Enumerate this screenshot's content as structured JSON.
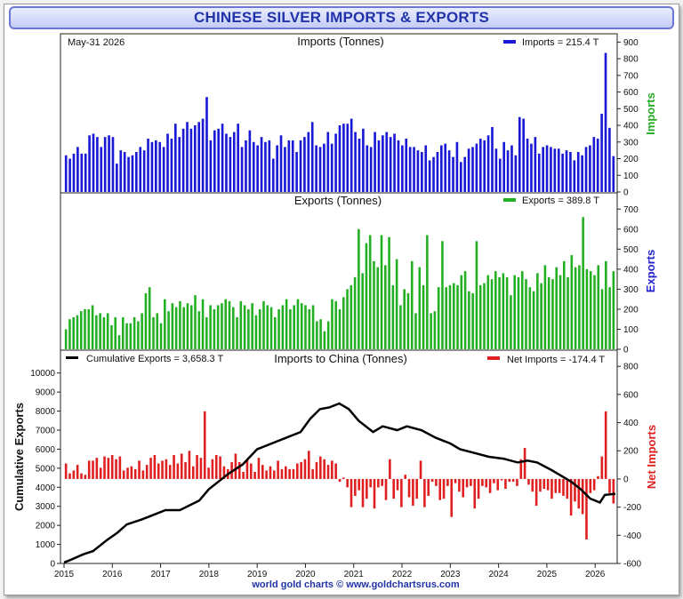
{
  "page_title": "CHINESE SILVER IMPORTS & EXPORTS",
  "footer": "world gold charts © www.goldchartsrus.com",
  "chart_data": [
    {
      "id": "imports",
      "type": "bar",
      "title": "Imports (Tonnes)",
      "date_label": "May-31  2026",
      "legend": "Imports = 215.4 T",
      "ylabel": "Imports",
      "ylim": [
        0,
        950
      ],
      "yticks": [
        0,
        100,
        200,
        300,
        400,
        500,
        600,
        700,
        800,
        900
      ],
      "color": "#1a1ad6",
      "x_start": "2015-01",
      "values": [
        220,
        200,
        230,
        270,
        230,
        230,
        340,
        350,
        330,
        270,
        330,
        340,
        330,
        170,
        250,
        240,
        210,
        220,
        240,
        270,
        250,
        320,
        300,
        310,
        300,
        270,
        350,
        320,
        410,
        330,
        380,
        420,
        380,
        400,
        420,
        440,
        570,
        310,
        370,
        380,
        410,
        350,
        330,
        360,
        410,
        270,
        310,
        370,
        300,
        280,
        330,
        300,
        310,
        200,
        280,
        340,
        270,
        310,
        310,
        240,
        310,
        330,
        360,
        420,
        280,
        270,
        290,
        360,
        290,
        350,
        400,
        410,
        410,
        440,
        360,
        320,
        380,
        280,
        270,
        360,
        310,
        340,
        360,
        330,
        350,
        310,
        280,
        320,
        270,
        270,
        250,
        240,
        280,
        190,
        210,
        240,
        280,
        290,
        250,
        210,
        300,
        180,
        210,
        260,
        270,
        290,
        320,
        310,
        340,
        390,
        260,
        200,
        300,
        250,
        280,
        220,
        450,
        440,
        320,
        290,
        330,
        230,
        270,
        280,
        270,
        260,
        260,
        230,
        250,
        240,
        190,
        240,
        220,
        270,
        280,
        330,
        320,
        470,
        835,
        385,
        215.4
      ]
    },
    {
      "id": "exports",
      "type": "bar",
      "title": "Exports (Tonnes)",
      "legend": "Exports = 389.8 T",
      "ylabel": "Exports",
      "ylim": [
        0,
        750
      ],
      "yticks": [
        0,
        100,
        200,
        300,
        400,
        500,
        600,
        700
      ],
      "color": "#22b022",
      "x_start": "2015-01",
      "values": [
        100,
        150,
        160,
        170,
        190,
        200,
        200,
        220,
        170,
        180,
        160,
        180,
        120,
        160,
        70,
        160,
        130,
        130,
        160,
        140,
        180,
        280,
        310,
        160,
        180,
        130,
        250,
        190,
        230,
        210,
        240,
        210,
        230,
        220,
        270,
        190,
        250,
        160,
        220,
        200,
        220,
        230,
        250,
        240,
        210,
        160,
        240,
        220,
        200,
        230,
        170,
        200,
        240,
        220,
        210,
        160,
        200,
        220,
        250,
        200,
        220,
        250,
        230,
        220,
        200,
        220,
        140,
        150,
        90,
        140,
        250,
        240,
        200,
        260,
        300,
        320,
        360,
        600,
        380,
        530,
        570,
        440,
        410,
        570,
        420,
        560,
        320,
        450,
        220,
        300,
        280,
        440,
        180,
        410,
        320,
        570,
        180,
        190,
        310,
        540,
        310,
        320,
        330,
        320,
        370,
        390,
        290,
        280,
        540,
        320,
        330,
        370,
        350,
        390,
        360,
        380,
        360,
        270,
        370,
        360,
        390,
        350,
        310,
        290,
        380,
        330,
        420,
        360,
        350,
        410,
        370,
        440,
        360,
        470,
        410,
        420,
        660,
        400,
        390,
        370,
        420,
        300,
        440,
        310,
        389.8
      ]
    },
    {
      "id": "china",
      "type": "bar+line",
      "title": "Imports to China (Tonnes)",
      "legend_left": "Cumulative Exports  = 3,658.3 T",
      "legend_right": "Net Imports = -174.4 T",
      "ylabel_left": "Cumulative Exports",
      "ylabel_right": "Net Imports",
      "ylim_left": [
        0,
        10500
      ],
      "yticks_left": [
        0,
        1000,
        2000,
        3000,
        4000,
        5000,
        6000,
        7000,
        8000,
        9000,
        10000
      ],
      "ylim_right": [
        -600,
        820
      ],
      "yticks_right": [
        -600,
        -400,
        -200,
        0,
        200,
        400,
        600,
        800
      ],
      "x_start_year": 2015,
      "x_end_year": 2026.42,
      "xticks": [
        "2015",
        "2016",
        "2017",
        "2018",
        "2019",
        "2020",
        "2021",
        "2022",
        "2023",
        "2024",
        "2025",
        "2026"
      ],
      "bar_color": "#e02020",
      "line_color": "#000000",
      "net_values": [
        110,
        40,
        60,
        100,
        40,
        30,
        130,
        130,
        150,
        80,
        160,
        150,
        170,
        140,
        160,
        60,
        80,
        90,
        70,
        130,
        60,
        100,
        150,
        170,
        110,
        130,
        140,
        100,
        170,
        110,
        180,
        120,
        200,
        90,
        170,
        150,
        480,
        80,
        140,
        170,
        160,
        90,
        70,
        120,
        180,
        120,
        50,
        140,
        110,
        50,
        150,
        100,
        60,
        90,
        60,
        130,
        70,
        90,
        70,
        70,
        110,
        120,
        140,
        200,
        70,
        120,
        160,
        140,
        100,
        130,
        110,
        -20,
        10,
        -60,
        -200,
        -120,
        -80,
        -200,
        -140,
        -60,
        -210,
        -60,
        -50,
        -150,
        140,
        -140,
        -80,
        -200,
        30,
        -130,
        -190,
        -140,
        130,
        -200,
        -120,
        -20,
        -50,
        -150,
        -140,
        -50,
        -270,
        -30,
        -90,
        -130,
        -60,
        -50,
        -210,
        -140,
        -50,
        -60,
        -100,
        -30,
        -80,
        -10,
        -70,
        -20,
        -20,
        -50,
        140,
        220,
        -40,
        -90,
        -190,
        -90,
        -70,
        -80,
        -140,
        -100,
        -100,
        -120,
        -140,
        -260,
        -160,
        -210,
        -250,
        -430,
        -100,
        -80,
        20,
        160,
        480,
        -100,
        -174.4
      ],
      "cumulative": [
        [
          2015.0,
          50
        ],
        [
          2015.15,
          200
        ],
        [
          2015.4,
          480
        ],
        [
          2015.6,
          650
        ],
        [
          2015.9,
          1250
        ],
        [
          2016.1,
          1600
        ],
        [
          2016.3,
          2050
        ],
        [
          2016.6,
          2300
        ],
        [
          2016.9,
          2600
        ],
        [
          2017.1,
          2800
        ],
        [
          2017.4,
          2800
        ],
        [
          2017.8,
          3300
        ],
        [
          2018.0,
          3900
        ],
        [
          2018.4,
          4700
        ],
        [
          2018.7,
          5200
        ],
        [
          2019.0,
          6000
        ],
        [
          2019.3,
          6300
        ],
        [
          2019.6,
          6600
        ],
        [
          2019.9,
          6900
        ],
        [
          2020.1,
          7600
        ],
        [
          2020.3,
          8100
        ],
        [
          2020.5,
          8200
        ],
        [
          2020.7,
          8400
        ],
        [
          2020.9,
          8100
        ],
        [
          2021.1,
          7500
        ],
        [
          2021.4,
          6900
        ],
        [
          2021.6,
          7200
        ],
        [
          2021.9,
          7000
        ],
        [
          2022.1,
          7200
        ],
        [
          2022.4,
          7000
        ],
        [
          2022.7,
          6600
        ],
        [
          2023.0,
          6300
        ],
        [
          2023.2,
          6000
        ],
        [
          2023.5,
          5800
        ],
        [
          2023.8,
          5600
        ],
        [
          2024.1,
          5500
        ],
        [
          2024.4,
          5300
        ],
        [
          2024.6,
          5400
        ],
        [
          2024.8,
          5300
        ],
        [
          2025.1,
          4900
        ],
        [
          2025.3,
          4600
        ],
        [
          2025.5,
          4300
        ],
        [
          2025.7,
          3900
        ],
        [
          2025.9,
          3400
        ],
        [
          2026.1,
          3200
        ],
        [
          2026.2,
          3600
        ],
        [
          2026.42,
          3658.3
        ]
      ]
    }
  ]
}
